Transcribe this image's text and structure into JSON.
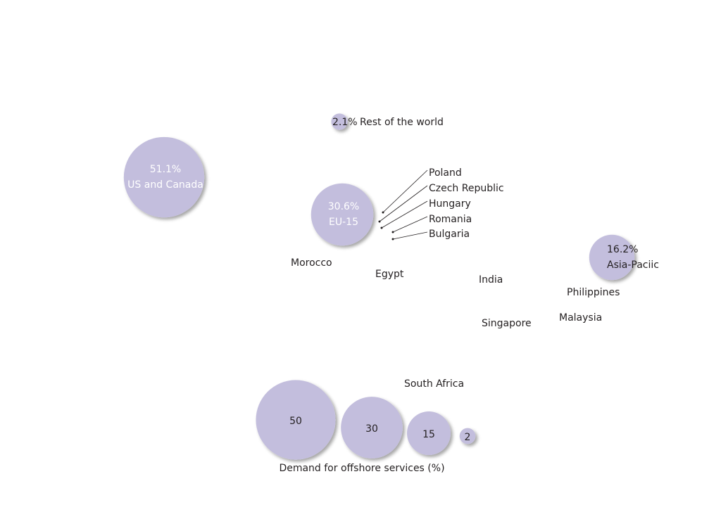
{
  "regions": [
    {
      "name": "US and Canada",
      "value": 51.1,
      "value_label": "51.1%"
    },
    {
      "name": "EU-15",
      "value": 30.6,
      "value_label": "30.6%"
    },
    {
      "name": "Asia-Paciic",
      "value": 16.2,
      "value_label": "16.2%"
    },
    {
      "name": "Rest of the world",
      "value": 2.1,
      "value_label": "2.1%"
    }
  ],
  "countries": [
    "Poland",
    "Czech Republic",
    "Hungary",
    "Romania",
    "Bulgaria",
    "Morocco",
    "Egypt",
    "India",
    "Philippines",
    "Singapore",
    "Malaysia",
    "South Africa"
  ],
  "legend": {
    "title": "Demand for offshore services (%)",
    "sizes": [
      50,
      30,
      15,
      2
    ]
  }
}
